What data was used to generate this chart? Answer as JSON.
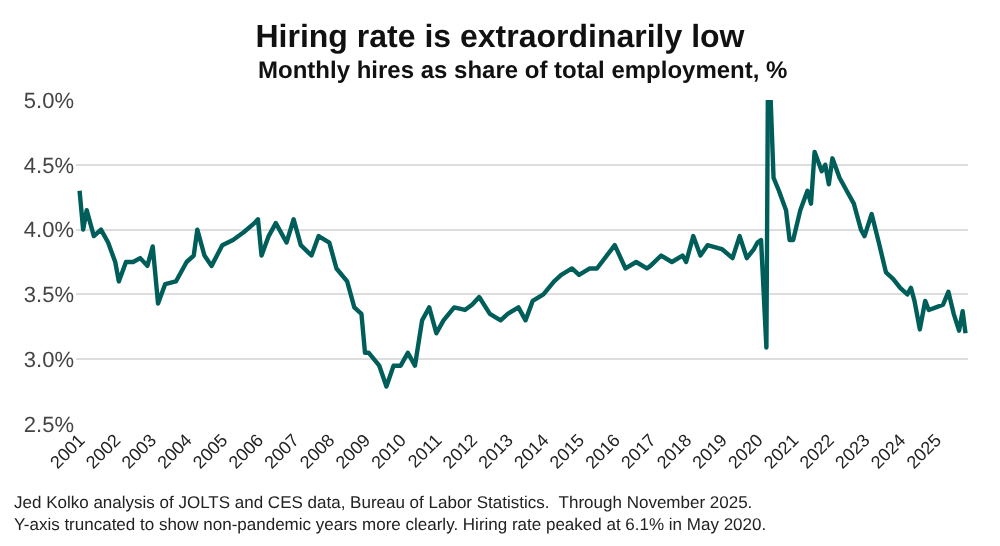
{
  "chart_data": {
    "type": "line",
    "title": "Hiring rate is extraordinarily low",
    "subtitle": "Monthly hires as share of total employment, %",
    "annotations": [
      "Jed Kolko analysis of JOLTS and CES data, Bureau of Labor Statistics.  Through November 2025.",
      "Y-axis truncated to show non-pandemic years more clearly. Hiring rate peaked at 6.1% in May 2020."
    ],
    "x": [
      2001.0,
      2001.1,
      2001.2,
      2001.4,
      2001.6,
      2001.8,
      2002.0,
      2002.1,
      2002.3,
      2002.5,
      2002.7,
      2002.9,
      2003.05,
      2003.2,
      2003.4,
      2003.7,
      2004.0,
      2004.2,
      2004.3,
      2004.5,
      2004.7,
      2005.0,
      2005.3,
      2005.6,
      2005.9,
      2006.0,
      2006.1,
      2006.3,
      2006.5,
      2006.8,
      2007.0,
      2007.2,
      2007.5,
      2007.7,
      2008.0,
      2008.2,
      2008.5,
      2008.7,
      2008.9,
      2009.0,
      2009.1,
      2009.4,
      2009.6,
      2009.8,
      2010.0,
      2010.2,
      2010.4,
      2010.6,
      2010.8,
      2011.0,
      2011.2,
      2011.5,
      2011.8,
      2012.0,
      2012.2,
      2012.5,
      2012.8,
      2013.0,
      2013.3,
      2013.5,
      2013.7,
      2014.0,
      2014.3,
      2014.5,
      2014.8,
      2015.0,
      2015.3,
      2015.5,
      2016.0,
      2016.3,
      2016.6,
      2016.9,
      2017.0,
      2017.3,
      2017.6,
      2017.9,
      2018.0,
      2018.2,
      2018.4,
      2018.6,
      2019.0,
      2019.3,
      2019.5,
      2019.7,
      2019.9,
      2020.0,
      2020.1,
      2020.25,
      2020.29,
      2020.33,
      2020.37,
      2020.45,
      2020.6,
      2020.8,
      2020.9,
      2021.0,
      2021.2,
      2021.4,
      2021.5,
      2021.6,
      2021.8,
      2021.9,
      2022.0,
      2022.1,
      2022.3,
      2022.5,
      2022.7,
      2022.9,
      2023.0,
      2023.2,
      2023.4,
      2023.6,
      2023.8,
      2024.0,
      2024.2,
      2024.3,
      2024.4,
      2024.55,
      2024.7,
      2024.8,
      2025.0,
      2025.2,
      2025.35,
      2025.5,
      2025.65,
      2025.75,
      2025.83
    ],
    "series": [
      {
        "color": "#005e5a",
        "values": [
          4.3,
          4.0,
          4.15,
          3.95,
          4.0,
          3.9,
          3.75,
          3.6,
          3.75,
          3.75,
          3.78,
          3.72,
          3.87,
          3.43,
          3.58,
          3.6,
          3.75,
          3.8,
          4.0,
          3.8,
          3.72,
          3.88,
          3.92,
          3.98,
          4.05,
          4.08,
          3.8,
          3.95,
          4.05,
          3.9,
          4.08,
          3.88,
          3.8,
          3.95,
          3.9,
          3.7,
          3.6,
          3.4,
          3.35,
          3.05,
          3.05,
          2.95,
          2.79,
          2.95,
          2.95,
          3.05,
          2.95,
          3.3,
          3.4,
          3.2,
          3.3,
          3.4,
          3.38,
          3.42,
          3.48,
          3.35,
          3.3,
          3.35,
          3.4,
          3.3,
          3.45,
          3.5,
          3.6,
          3.65,
          3.7,
          3.65,
          3.7,
          3.7,
          3.88,
          3.7,
          3.75,
          3.7,
          3.72,
          3.8,
          3.75,
          3.8,
          3.75,
          3.95,
          3.8,
          3.88,
          3.85,
          3.78,
          3.95,
          3.78,
          3.85,
          3.9,
          3.92,
          3.09,
          5.0,
          null,
          5.0,
          4.4,
          4.3,
          4.15,
          3.92,
          3.92,
          4.15,
          4.3,
          4.2,
          4.6,
          4.45,
          4.5,
          4.35,
          4.55,
          4.4,
          4.3,
          4.2,
          4.0,
          3.95,
          4.12,
          3.9,
          3.67,
          3.62,
          3.55,
          3.5,
          3.55,
          3.45,
          3.23,
          3.45,
          3.38,
          3.4,
          3.42,
          3.52,
          3.35,
          3.22,
          3.37,
          3.2
        ]
      }
    ],
    "xlim": [
      2000.9,
      2025.9
    ],
    "xticks": [
      2001,
      2002,
      2003,
      2004,
      2005,
      2006,
      2007,
      2008,
      2009,
      2010,
      2011,
      2012,
      2013,
      2014,
      2015,
      2016,
      2017,
      2018,
      2019,
      2020,
      2021,
      2022,
      2023,
      2024,
      2025
    ],
    "ylim": [
      2.5,
      5.0
    ],
    "yticks": [
      {
        "value": 2.5,
        "label": "2.5%"
      },
      {
        "value": 3.0,
        "label": "3.0%"
      },
      {
        "value": 3.5,
        "label": "3.5%"
      },
      {
        "value": 4.0,
        "label": "4.0%"
      },
      {
        "value": 4.5,
        "label": "4.5%"
      },
      {
        "value": 5.0,
        "label": "5.0%"
      }
    ],
    "grid": "y",
    "marker": "none",
    "line_style": "solid"
  }
}
